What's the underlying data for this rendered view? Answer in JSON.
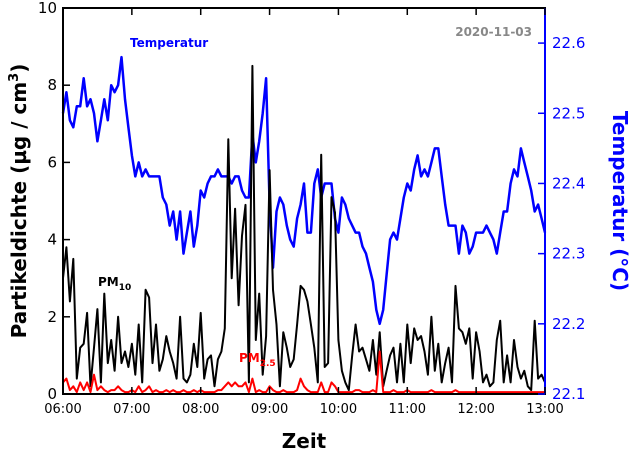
{
  "chart_data": {
    "type": "line",
    "date_label": "2020-11-03",
    "xlabel": "Zeit",
    "ylabel_left_parts": [
      "Partikeldichte (µg / cm",
      "3",
      ")"
    ],
    "ylabel_right": "Temperatur (°C)",
    "x_ticks": [
      "06:00",
      "07:00",
      "08:00",
      "09:00",
      "10:00",
      "11:00",
      "12:00",
      "13:00"
    ],
    "y_left_ticks": [
      "0",
      "2",
      "4",
      "6",
      "8",
      "10"
    ],
    "y_right_ticks": [
      "22.1",
      "22.2",
      "22.3",
      "22.4",
      "22.5",
      "22.6"
    ],
    "ylim_left": [
      0,
      10
    ],
    "ylim_right": [
      22.1,
      22.65
    ],
    "xlim_hours": [
      6,
      13
    ],
    "grid": false,
    "colors": {
      "temperature": "#0000ff",
      "pm10": "#000000",
      "pm25": "#ff0000",
      "right_axis": "#0000ff",
      "date": "#888888"
    },
    "series": [
      {
        "key": "temperature",
        "name": "Temperatur",
        "axis": "right",
        "x": [
          6.0,
          6.05,
          6.1,
          6.15,
          6.2,
          6.25,
          6.3,
          6.35,
          6.4,
          6.45,
          6.5,
          6.55,
          6.6,
          6.65,
          6.7,
          6.75,
          6.8,
          6.85,
          6.9,
          6.95,
          7.0,
          7.05,
          7.1,
          7.15,
          7.2,
          7.25,
          7.3,
          7.35,
          7.4,
          7.45,
          7.5,
          7.55,
          7.6,
          7.65,
          7.7,
          7.75,
          7.8,
          7.85,
          7.9,
          7.95,
          8.0,
          8.05,
          8.1,
          8.15,
          8.2,
          8.25,
          8.3,
          8.35,
          8.4,
          8.45,
          8.5,
          8.55,
          8.6,
          8.65,
          8.7,
          8.75,
          8.8,
          8.85,
          8.9,
          8.95,
          9.0,
          9.05,
          9.1,
          9.15,
          9.2,
          9.25,
          9.3,
          9.35,
          9.4,
          9.45,
          9.5,
          9.55,
          9.6,
          9.65,
          9.7,
          9.75,
          9.8,
          9.85,
          9.9,
          9.95,
          10.0,
          10.05,
          10.1,
          10.15,
          10.2,
          10.25,
          10.3,
          10.35,
          10.4,
          10.45,
          10.5,
          10.55,
          10.6,
          10.65,
          10.7,
          10.75,
          10.8,
          10.85,
          10.9,
          10.95,
          11.0,
          11.05,
          11.1,
          11.15,
          11.2,
          11.25,
          11.3,
          11.35,
          11.4,
          11.45,
          11.5,
          11.55,
          11.6,
          11.65,
          11.7,
          11.75,
          11.8,
          11.85,
          11.9,
          11.95,
          12.0,
          12.05,
          12.1,
          12.15,
          12.2,
          12.25,
          12.3,
          12.35,
          12.4,
          12.45,
          12.5,
          12.55,
          12.6,
          12.65,
          12.7,
          12.75,
          12.8,
          12.85,
          12.9,
          12.95,
          13.0
        ],
        "values": [
          22.5,
          22.53,
          22.49,
          22.48,
          22.51,
          22.51,
          22.55,
          22.51,
          22.52,
          22.5,
          22.46,
          22.49,
          22.52,
          22.49,
          22.54,
          22.53,
          22.54,
          22.58,
          22.52,
          22.48,
          22.44,
          22.41,
          22.43,
          22.41,
          22.42,
          22.41,
          22.41,
          22.41,
          22.41,
          22.38,
          22.37,
          22.34,
          22.36,
          22.32,
          22.36,
          22.3,
          22.33,
          22.36,
          22.31,
          22.34,
          22.39,
          22.38,
          22.4,
          22.41,
          22.41,
          22.42,
          22.41,
          22.41,
          22.41,
          22.4,
          22.41,
          22.41,
          22.39,
          22.38,
          22.38,
          22.47,
          22.43,
          22.46,
          22.5,
          22.55,
          22.37,
          22.28,
          22.36,
          22.38,
          22.37,
          22.34,
          22.32,
          22.31,
          22.35,
          22.37,
          22.4,
          22.33,
          22.33,
          22.4,
          22.42,
          22.38,
          22.4,
          22.4,
          22.4,
          22.35,
          22.33,
          22.38,
          22.37,
          22.35,
          22.34,
          22.33,
          22.33,
          22.31,
          22.3,
          22.28,
          22.26,
          22.22,
          22.2,
          22.22,
          22.27,
          22.32,
          22.33,
          22.32,
          22.35,
          22.38,
          22.4,
          22.39,
          22.42,
          22.44,
          22.41,
          22.42,
          22.41,
          22.43,
          22.45,
          22.45,
          22.41,
          22.37,
          22.34,
          22.34,
          22.34,
          22.3,
          22.34,
          22.33,
          22.3,
          22.31,
          22.33,
          22.33,
          22.33,
          22.34,
          22.33,
          22.32,
          22.3,
          22.33,
          22.36,
          22.36,
          22.4,
          22.42,
          22.41,
          22.45,
          22.43,
          22.41,
          22.39,
          22.36,
          22.37,
          22.35,
          22.33
        ]
      },
      {
        "key": "pm10",
        "name": "PM",
        "name_sub": "10",
        "axis": "left",
        "x": [
          6.0,
          6.05,
          6.1,
          6.15,
          6.2,
          6.25,
          6.3,
          6.35,
          6.4,
          6.45,
          6.5,
          6.55,
          6.6,
          6.65,
          6.7,
          6.75,
          6.8,
          6.85,
          6.9,
          6.95,
          7.0,
          7.05,
          7.1,
          7.15,
          7.2,
          7.25,
          7.3,
          7.35,
          7.4,
          7.45,
          7.5,
          7.55,
          7.6,
          7.65,
          7.7,
          7.75,
          7.8,
          7.85,
          7.9,
          7.95,
          8.0,
          8.05,
          8.1,
          8.15,
          8.2,
          8.25,
          8.3,
          8.35,
          8.4,
          8.45,
          8.5,
          8.55,
          8.6,
          8.65,
          8.7,
          8.75,
          8.8,
          8.85,
          8.9,
          8.95,
          9.0,
          9.05,
          9.1,
          9.15,
          9.2,
          9.25,
          9.3,
          9.35,
          9.4,
          9.45,
          9.5,
          9.55,
          9.6,
          9.65,
          9.7,
          9.75,
          9.8,
          9.85,
          9.9,
          9.95,
          10.0,
          10.05,
          10.1,
          10.15,
          10.2,
          10.25,
          10.3,
          10.35,
          10.4,
          10.45,
          10.5,
          10.55,
          10.6,
          10.65,
          10.7,
          10.75,
          10.8,
          10.85,
          10.9,
          10.95,
          11.0,
          11.05,
          11.1,
          11.15,
          11.2,
          11.25,
          11.3,
          11.35,
          11.4,
          11.45,
          11.5,
          11.55,
          11.6,
          11.65,
          11.7,
          11.75,
          11.8,
          11.85,
          11.9,
          11.95,
          12.0,
          12.05,
          12.1,
          12.15,
          12.2,
          12.25,
          12.3,
          12.35,
          12.4,
          12.45,
          12.5,
          12.55,
          12.6,
          12.65,
          12.7,
          12.75,
          12.8,
          12.85,
          12.9,
          12.95,
          13.0
        ],
        "values": [
          3.0,
          3.8,
          2.4,
          3.5,
          0.4,
          1.2,
          1.3,
          2.1,
          0.2,
          1.2,
          2.2,
          0.3,
          2.6,
          0.8,
          1.4,
          0.6,
          2.0,
          0.8,
          1.1,
          0.7,
          1.3,
          0.5,
          1.8,
          0.3,
          2.7,
          2.5,
          0.8,
          1.8,
          0.6,
          0.9,
          1.5,
          1.1,
          0.8,
          0.4,
          2.0,
          0.4,
          0.3,
          0.5,
          1.3,
          0.7,
          2.1,
          0.4,
          0.9,
          1.0,
          0.2,
          0.9,
          1.1,
          1.7,
          6.6,
          3.0,
          4.8,
          2.3,
          4.1,
          4.9,
          0.3,
          8.5,
          1.4,
          2.6,
          0.5,
          1.5,
          5.8,
          2.7,
          1.8,
          0.2,
          1.6,
          1.2,
          0.7,
          0.9,
          1.8,
          2.8,
          2.7,
          2.4,
          1.8,
          1.2,
          0.3,
          6.2,
          0.7,
          0.8,
          5.1,
          4.7,
          1.4,
          0.6,
          0.3,
          0.1,
          1.0,
          1.8,
          1.1,
          1.2,
          0.9,
          0.6,
          1.4,
          0.5,
          1.6,
          0.2,
          0.6,
          1.0,
          1.2,
          0.3,
          1.3,
          0.3,
          1.8,
          0.8,
          1.7,
          1.4,
          1.5,
          1.1,
          0.5,
          2.0,
          0.6,
          1.3,
          0.3,
          0.8,
          1.2,
          0.3,
          2.8,
          1.7,
          1.6,
          1.3,
          1.7,
          0.4,
          1.6,
          1.1,
          0.3,
          0.5,
          0.2,
          0.3,
          1.4,
          1.9,
          0.3,
          1.0,
          0.3,
          1.4,
          0.7,
          0.4,
          0.6,
          0.2,
          0.1,
          1.9,
          0.4,
          0.5,
          0.3
        ]
      },
      {
        "key": "pm25",
        "name": "PM",
        "name_sub": "2.5",
        "axis": "left",
        "x": [
          6.0,
          6.05,
          6.1,
          6.15,
          6.2,
          6.25,
          6.3,
          6.35,
          6.4,
          6.45,
          6.5,
          6.55,
          6.6,
          6.65,
          6.7,
          6.75,
          6.8,
          6.85,
          6.9,
          6.95,
          7.0,
          7.05,
          7.1,
          7.15,
          7.2,
          7.25,
          7.3,
          7.35,
          7.4,
          7.45,
          7.5,
          7.55,
          7.6,
          7.65,
          7.7,
          7.75,
          7.8,
          7.85,
          7.9,
          7.95,
          8.0,
          8.05,
          8.1,
          8.15,
          8.2,
          8.25,
          8.3,
          8.35,
          8.4,
          8.45,
          8.5,
          8.55,
          8.6,
          8.65,
          8.7,
          8.75,
          8.8,
          8.85,
          8.9,
          8.95,
          9.0,
          9.05,
          9.1,
          9.15,
          9.2,
          9.25,
          9.3,
          9.35,
          9.4,
          9.45,
          9.5,
          9.55,
          9.6,
          9.65,
          9.7,
          9.75,
          9.8,
          9.85,
          9.9,
          9.95,
          10.0,
          10.05,
          10.1,
          10.15,
          10.2,
          10.25,
          10.3,
          10.35,
          10.4,
          10.45,
          10.5,
          10.55,
          10.6,
          10.65,
          10.7,
          10.75,
          10.8,
          10.85,
          10.9,
          10.95,
          11.0,
          11.05,
          11.1,
          11.15,
          11.2,
          11.25,
          11.3,
          11.35,
          11.4,
          11.45,
          11.5,
          11.55,
          11.6,
          11.65,
          11.7,
          11.75,
          11.8,
          11.85,
          11.9,
          11.95,
          12.0,
          12.05,
          12.1,
          12.15,
          12.2,
          12.25,
          12.3,
          12.35,
          12.4,
          12.45,
          12.5,
          12.55,
          12.6,
          12.65,
          12.7,
          12.75,
          12.8,
          12.85,
          12.9,
          12.95,
          13.0
        ],
        "values": [
          0.3,
          0.4,
          0.1,
          0.2,
          0.05,
          0.3,
          0.1,
          0.3,
          0.05,
          0.5,
          0.1,
          0.2,
          0.1,
          0.05,
          0.1,
          0.1,
          0.2,
          0.1,
          0.05,
          0.05,
          0.1,
          0.05,
          0.2,
          0.05,
          0.1,
          0.2,
          0.05,
          0.1,
          0.05,
          0.05,
          0.1,
          0.05,
          0.1,
          0.05,
          0.05,
          0.1,
          0.05,
          0.05,
          0.1,
          0.05,
          0.1,
          0.05,
          0.05,
          0.05,
          0.05,
          0.1,
          0.1,
          0.2,
          0.3,
          0.2,
          0.3,
          0.2,
          0.2,
          0.3,
          0.05,
          0.4,
          0.05,
          0.1,
          0.05,
          0.05,
          0.2,
          0.1,
          0.05,
          0.05,
          0.1,
          0.05,
          0.05,
          0.05,
          0.1,
          0.4,
          0.2,
          0.1,
          0.05,
          0.05,
          0.05,
          0.3,
          0.05,
          0.05,
          0.3,
          0.2,
          0.05,
          0.05,
          0.05,
          0.05,
          0.05,
          0.1,
          0.1,
          0.05,
          0.05,
          0.05,
          0.1,
          0.05,
          1.1,
          0.05,
          0.05,
          0.05,
          0.1,
          0.05,
          0.05,
          0.05,
          0.1,
          0.05,
          0.05,
          0.05,
          0.05,
          0.05,
          0.05,
          0.1,
          0.05,
          0.05,
          0.05,
          0.05,
          0.05,
          0.05,
          0.1,
          0.05,
          0.05,
          0.05,
          0.05,
          0.05,
          0.05,
          0.05,
          0.05,
          0.05,
          0.05,
          0.05,
          0.05,
          0.05,
          0.05,
          0.05,
          0.05,
          0.05,
          0.05,
          0.05,
          0.05,
          0.05,
          0.05,
          0.05,
          0.05,
          0.05,
          0.05
        ]
      }
    ]
  }
}
